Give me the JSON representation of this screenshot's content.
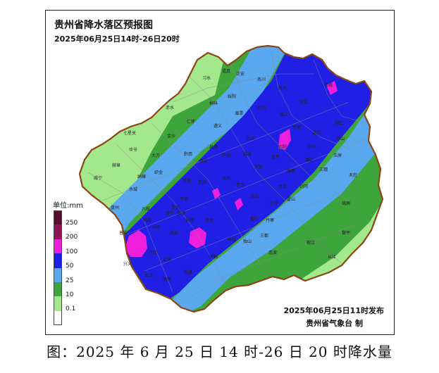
{
  "title": "贵州省降水落区预报图",
  "subtitle": "2025年06月25日14时-26日20时",
  "issue_time": "2025年06月25日11时发布",
  "agency": "贵州省气象台 制",
  "caption": "图：2025 年 6 月 25 日 14 时-26 日 20 时降水量",
  "legend": {
    "unit": "单位:mm",
    "items": [
      {
        "label": "250",
        "color": "#5a0f2e"
      },
      {
        "label": "200",
        "color": "#8c1552"
      },
      {
        "label": "100",
        "color": "#ee1fdc"
      },
      {
        "label": "50",
        "color": "#1f1fe6"
      },
      {
        "label": "25",
        "color": "#5aa8f0"
      },
      {
        "label": "10",
        "color": "#3ea43c"
      },
      {
        "label": "0.1",
        "color": "#a4e88e"
      },
      {
        "label": "",
        "color": "#ffffff"
      }
    ]
  },
  "map": {
    "boundary_color": "#8b4513",
    "county_labels": [
      "道真",
      "正安",
      "习水",
      "务川",
      "沿河",
      "松桃",
      "印江",
      "桐梓",
      "湄潭",
      "凤冈",
      "德江",
      "思南",
      "江口",
      "铜仁",
      "万山",
      "遵义",
      "余庆",
      "石阡",
      "镇远",
      "玉屏",
      "金沙",
      "黔西",
      "开阳",
      "瓮安",
      "施秉",
      "三穗",
      "天柱",
      "锦屏",
      "黎平",
      "从江",
      "榕江",
      "雷山",
      "剑河",
      "台江",
      "凯里",
      "都匀",
      "独山",
      "荔波",
      "三都",
      "丹寨",
      "平塘",
      "罗甸",
      "惠水",
      "长顺",
      "紫云",
      "望谟",
      "册亨",
      "安龙",
      "兴义",
      "兴仁",
      "普安",
      "盘州",
      "六枝",
      "水城",
      "威宁",
      "赫章",
      "纳雍",
      "织金",
      "大方",
      "毕节",
      "平坝",
      "清镇",
      "修文",
      "息烽",
      "贵阳",
      "龙里",
      "贵定",
      "福泉",
      "麻江",
      "关岭",
      "镇宁",
      "安顺",
      "普定",
      "晴隆",
      "贞丰",
      "黄平",
      "岑巩",
      "赤水",
      "仁怀",
      "绥阳",
      "七星关"
    ]
  }
}
